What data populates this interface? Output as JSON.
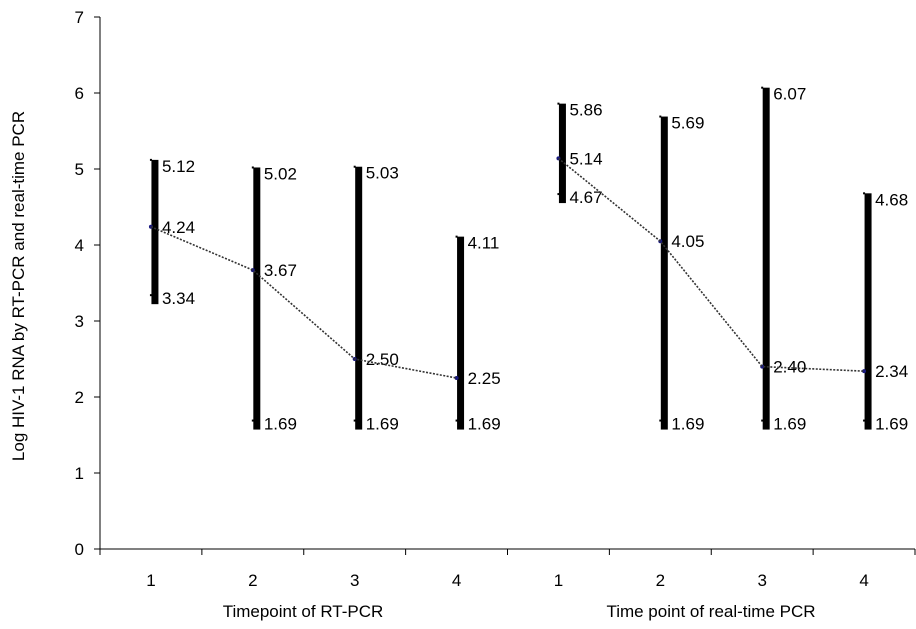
{
  "chart_data": {
    "type": "range-line",
    "ylabel": "Log HIV-1 RNA by RT-PCR and real-time PCR",
    "ylim": [
      0,
      7
    ],
    "yticks": [
      "0",
      "1",
      "2",
      "3",
      "4",
      "5",
      "6",
      "7"
    ],
    "grid": false,
    "legend": "none",
    "groups": [
      {
        "xlabel": "Timepoint of RT-PCR",
        "categories": [
          "1",
          "2",
          "3",
          "4"
        ],
        "median": [
          4.24,
          3.67,
          2.5,
          2.25
        ],
        "max": [
          5.12,
          5.02,
          5.03,
          4.11
        ],
        "min": [
          3.34,
          1.69,
          1.69,
          1.69
        ],
        "median_labels": [
          "4.24",
          "3.67",
          "2.50",
          "2.25"
        ],
        "max_labels": [
          "5.12",
          "5.02",
          "5.03",
          "4.11"
        ],
        "min_labels": [
          "3.34",
          "1.69",
          "1.69",
          "1.69"
        ]
      },
      {
        "xlabel": "Time point of real-time PCR",
        "categories": [
          "1",
          "2",
          "3",
          "4"
        ],
        "median": [
          5.14,
          4.05,
          2.4,
          2.34
        ],
        "max": [
          5.86,
          5.69,
          6.07,
          4.68
        ],
        "min": [
          4.67,
          1.69,
          1.69,
          1.69
        ],
        "median_labels": [
          "5.14",
          "4.05",
          "2.40",
          "2.34"
        ],
        "max_labels": [
          "5.86",
          "5.69",
          "6.07",
          "4.68"
        ],
        "min_labels": [
          "4.67",
          "1.69",
          "1.69",
          "1.69"
        ]
      }
    ],
    "colors": {
      "range_bar": "#000000",
      "median_line": "#333333",
      "median_marker": "#1a1a80"
    }
  }
}
